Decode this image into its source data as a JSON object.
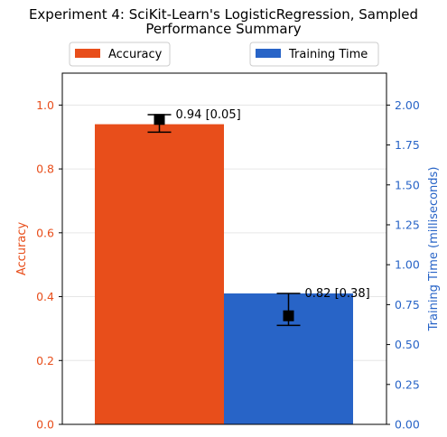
{
  "chart_data": {
    "type": "bar",
    "title_line1": "Experiment 4: SciKit-Learn's LogisticRegression, Sampled",
    "title_line2": "Performance Summary",
    "categories": [
      ""
    ],
    "legend_placement": "top, above plot",
    "grid": true,
    "series": [
      {
        "name": "Accuracy",
        "axis": "left",
        "color": "#e84e1b",
        "value": 0.94,
        "point": 0.955,
        "err_low": 0.915,
        "err_high": 0.97,
        "annotation": "0.94 [0.05]"
      },
      {
        "name": "Training Time",
        "axis": "right",
        "color": "#2864c7",
        "value": 0.82,
        "point": 0.68,
        "err_low": 0.62,
        "err_high": 0.82,
        "annotation": "0.82 [0.38]"
      }
    ],
    "left_axis": {
      "label": "Accuracy",
      "color": "#e84e1b",
      "ylim": [
        0,
        1.1
      ],
      "ticks": [
        "0.0",
        "0.2",
        "0.4",
        "0.6",
        "0.8",
        "1.0"
      ],
      "tick_values": [
        0,
        0.2,
        0.4,
        0.6,
        0.8,
        1.0
      ]
    },
    "right_axis": {
      "label": "Training Time (milliseconds)",
      "color": "#2864c7",
      "ylim": [
        0,
        2.2
      ],
      "ticks": [
        "0.00",
        "0.25",
        "0.50",
        "0.75",
        "1.00",
        "1.25",
        "1.50",
        "1.75",
        "2.00"
      ],
      "tick_values": [
        0,
        0.25,
        0.5,
        0.75,
        1.0,
        1.25,
        1.5,
        1.75,
        2.0
      ]
    }
  }
}
